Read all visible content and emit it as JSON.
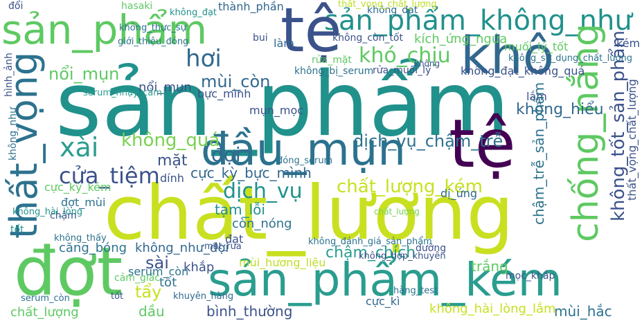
{
  "words": [
    {
      "text": "sản_phẩm",
      "color": "#21918c"
    },
    {
      "text": "chất_lượng",
      "color": "#c8e020"
    },
    {
      "text": "đợt",
      "color": "#5ec962"
    },
    {
      "text": "sản_phẩm_kém",
      "color": "#2a9d8f"
    },
    {
      "text": "sản_phẩm",
      "color": "#5ec962"
    },
    {
      "text": "sản_phẩm_không_như",
      "color": "#21918c"
    },
    {
      "text": "tệ",
      "color": "#3b528b"
    },
    {
      "text": "tệ",
      "color": "#440154"
    },
    {
      "text": "khô",
      "color": "#31688e"
    },
    {
      "text": "đầu_mụn",
      "color": "#2c728e"
    },
    {
      "text": "thất_vọng",
      "color": "#2c728e"
    },
    {
      "text": "chống_nắng",
      "color": "#5ec962"
    },
    {
      "text": "không_tốt_sản_phẩm",
      "color": "#3b528b"
    },
    {
      "text": "xài",
      "color": "#2a9d8f"
    },
    {
      "text": "cửa_tiệm",
      "color": "#3b528b"
    },
    {
      "text": "chất_lượng_kém",
      "color": "#c8e020"
    },
    {
      "text": "dịch_vụ",
      "color": "#21918c"
    },
    {
      "text": "hơi",
      "color": "#31688e"
    },
    {
      "text": "mùi_còn",
      "color": "#31688e"
    },
    {
      "text": "khó_chịu",
      "color": "#5ec962"
    },
    {
      "text": "không_quá",
      "color": "#7ad151"
    },
    {
      "text": "dịch_vụ_chậm_trễ",
      "color": "#2c728e"
    },
    {
      "text": "đợi",
      "color": "#31688e"
    },
    {
      "text": "mặt",
      "color": "#3b528b"
    },
    {
      "text": "cực_kỳ_bực_mình",
      "color": "#31688e"
    },
    {
      "text": "tạm_lỗi",
      "color": "#21918c"
    },
    {
      "text": "còn_nóng",
      "color": "#2c728e"
    },
    {
      "text": "chậm_chích",
      "color": "#2a9d8f"
    },
    {
      "text": "mùi_hương_liệu",
      "color": "#bddf26"
    },
    {
      "text": "bình_thường",
      "color": "#3b528b"
    },
    {
      "text": "tẩy",
      "color": "#c8e020"
    },
    {
      "text": "tốt",
      "color": "#2c728e"
    },
    {
      "text": "dầu",
      "color": "#5ec962"
    },
    {
      "text": "căng_bóng",
      "color": "#2c728e"
    },
    {
      "text": "không_như_đợi",
      "color": "#31688e"
    },
    {
      "text": "sài",
      "color": "#3b528b"
    },
    {
      "text": "khắp",
      "color": "#3b528b"
    },
    {
      "text": "serum_còn",
      "color": "#2c728e"
    },
    {
      "text": "trắng",
      "color": "#5ec962"
    },
    {
      "text": "mụn_mọc",
      "color": "#3b528b"
    },
    {
      "text": "nổi_mụn",
      "color": "#5ec962"
    },
    {
      "text": "nổi_mụn",
      "color": "#3b528b"
    },
    {
      "text": "không_đạt_không_quá",
      "color": "#3b528b"
    },
    {
      "text": "không_hiểu",
      "color": "#31688e"
    },
    {
      "text": "lắm",
      "color": "#3b528b"
    },
    {
      "text": "thành_phần",
      "color": "#31688e"
    },
    {
      "text": "kích_ứng_ngứa",
      "color": "#5ec962"
    },
    {
      "text": "không_hài_lòng_lắm",
      "color": "#c8e020"
    },
    {
      "text": "mùi_hắc",
      "color": "#2c728e"
    },
    {
      "text": "cực_kì",
      "color": "#31688e"
    },
    {
      "text": "chất_lượng",
      "color": "#5ec962"
    },
    {
      "text": "đạt",
      "color": "#3b528b"
    },
    {
      "text": "chậm_trễ_sản_phẩm",
      "color": "#2c728e"
    },
    {
      "text": "thất_vọng_chất_lượng",
      "color": "#3b528b"
    },
    {
      "text": "dị_ứng",
      "color": "#31688e"
    },
    {
      "text": "cực_kỳ_kém",
      "color": "#5ec962"
    },
    {
      "text": "dính",
      "color": "#3b528b"
    },
    {
      "text": "đợt_mùi",
      "color": "#2c728e"
    },
    {
      "text": "chậm",
      "color": "#3b528b"
    },
    {
      "text": "không_bị_serum",
      "color": "#2c728e"
    },
    {
      "text": "rửa_mặt",
      "color": "#5ec962"
    },
    {
      "text": "rửa_muối_lý",
      "color": "#3b528b"
    },
    {
      "text": "bực_mình",
      "color": "#3b528b"
    },
    {
      "text": "không_đạt",
      "color": "#31688e"
    },
    {
      "text": "không_còn_tốt",
      "color": "#3b528b"
    },
    {
      "text": "muối_lý_tốt",
      "color": "#5ec962"
    },
    {
      "text": "kém",
      "color": "#3b528b"
    },
    {
      "text": "không_thực_sự",
      "color": "#2c728e"
    },
    {
      "text": "hasaki",
      "color": "#5ec962"
    },
    {
      "text": "không_đạt",
      "color": "#21918c"
    },
    {
      "text": "thất_vọng_chất_lượng",
      "color": "#bddf26"
    },
    {
      "text": "giới_thiệu_đóng",
      "color": "#2c728e"
    },
    {
      "text": "bui",
      "color": "#3b528b"
    },
    {
      "text": "làm",
      "color": "#31688e"
    },
    {
      "text": "không_sử_dụng_chất_lượng",
      "color": "#2c728e"
    },
    {
      "text": "serum_nhạy_cảm",
      "color": "#2a9d8f"
    },
    {
      "text": "đóng_serum",
      "color": "#2c728e"
    },
    {
      "text": "không_hài_lòng",
      "color": "#21918c"
    },
    {
      "text": "mặt_rửa",
      "color": "#3b528b"
    },
    {
      "text": "dưỡng",
      "color": "#3b528b"
    },
    {
      "text": "không_đánh_giá_sản_phẩm",
      "color": "#2c728e"
    },
    {
      "text": "cảm_giác",
      "color": "#5ec962"
    },
    {
      "text": "khuyên_hàng",
      "color": "#31688e"
    },
    {
      "text": "tốt",
      "color": "#3b528b"
    },
    {
      "text": "hàng_test",
      "color": "#2c728e"
    },
    {
      "text": "không_hợp_khuyên",
      "color": "#3b528b"
    },
    {
      "text": "serum_còn",
      "color": "#2c728e"
    },
    {
      "text": "mọc_khắp",
      "color": "#3b528b"
    },
    {
      "text": "chất_lượng",
      "color": "#7ad151"
    },
    {
      "text": "tốt",
      "color": "#21918c"
    },
    {
      "text": "không_thấy",
      "color": "#2c728e"
    },
    {
      "text": "hình_ảnh",
      "color": "#3b528b"
    },
    {
      "text": "không_như",
      "color": "#2c728e"
    },
    {
      "text": "không",
      "color": "#3b528b"
    },
    {
      "text": "đổi",
      "color": "#3b528b"
    }
  ]
}
